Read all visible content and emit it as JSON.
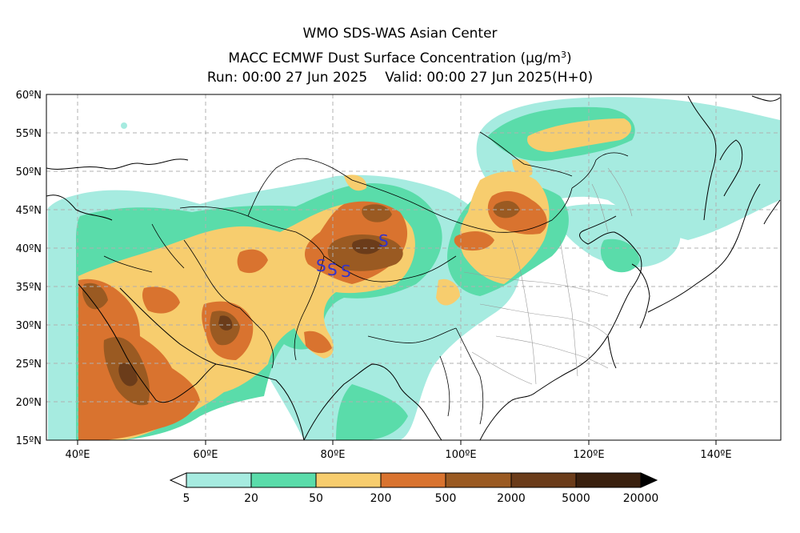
{
  "header": {
    "line1": "WMO SDS-WAS Asian Center",
    "line2_text": "MACC ECMWF Dust Surface Concentration",
    "line2_units_open": "(μg/m",
    "line2_units_sup": "3",
    "line2_units_close": ")",
    "run": "Run: 00:00 27 Jun 2025",
    "valid": "Valid: 00:00 27 Jun 2025(H+0)"
  },
  "map": {
    "lat_labels": [
      "60ºN",
      "55ºN",
      "50ºN",
      "45ºN",
      "40ºN",
      "35ºN",
      "30ºN",
      "25ºN",
      "20ºN",
      "15ºN"
    ],
    "lon_labels": [
      "40ºE",
      "60ºE",
      "80ºE",
      "100ºE",
      "120ºE",
      "140ºE"
    ],
    "lon_range": [
      35,
      150
    ],
    "lat_range": [
      15,
      60
    ],
    "station_marker": "S",
    "station_count": 4
  },
  "colorbar": {
    "labels": [
      "5",
      "20",
      "50",
      "200",
      "500",
      "2000",
      "5000",
      "20000"
    ],
    "colors": [
      "#a6ebe0",
      "#5adcaa",
      "#f7cd6e",
      "#d9732f",
      "#9a5a22",
      "#6b3c1a",
      "#3a200e"
    ]
  },
  "colors": {
    "grid": "#b0b0b0",
    "coast": "#000000",
    "province": "#999999",
    "marker": "#3333cc"
  }
}
